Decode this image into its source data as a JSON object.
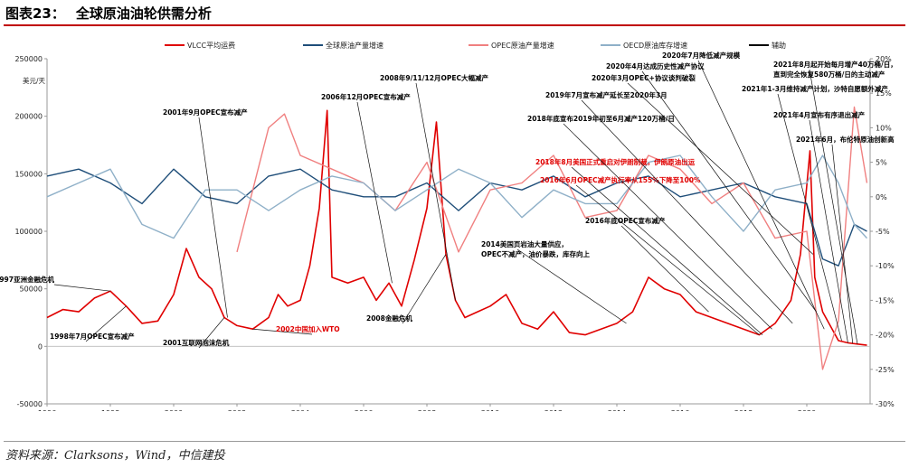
{
  "header": {
    "figure_number": "图表23：",
    "title": "全球原油油轮供需分析"
  },
  "source": "资料来源：Clarksons，Wind，中信建投",
  "chart_data": {
    "type": "line",
    "title": "全球原油油轮供需分析",
    "ylabel_left": "美元/天",
    "ylabel_right": "",
    "xlim": [
      1996,
      2022
    ],
    "ylim_left": [
      -50000,
      250000
    ],
    "ylim_right": [
      -30,
      20
    ],
    "x_ticks": [
      "1996",
      "1998",
      "2000",
      "2002",
      "2004",
      "2006",
      "2008",
      "2010",
      "2012",
      "2014",
      "2016",
      "2018",
      "2020"
    ],
    "y_left_ticks": [
      "-50000",
      "0",
      "50000",
      "100000",
      "150000",
      "200000",
      "250000"
    ],
    "y_right_ticks": [
      "-30%",
      "-25%",
      "-20%",
      "-15%",
      "-10%",
      "-5%",
      "0%",
      "5%",
      "10%",
      "15%",
      "20%"
    ],
    "legend_position": "top",
    "grid": false,
    "series": [
      {
        "name": "VLCC平均运费",
        "axis": "left",
        "color": "#e00000",
        "x": [
          1996.0,
          1996.5,
          1997.0,
          1997.5,
          1998.0,
          1998.5,
          1999.0,
          1999.5,
          2000.0,
          2000.4,
          2000.8,
          2001.2,
          2001.6,
          2002.0,
          2002.5,
          2003.0,
          2003.3,
          2003.6,
          2004.0,
          2004.3,
          2004.6,
          2004.85,
          2005.0,
          2005.5,
          2006.0,
          2006.4,
          2006.8,
          2007.2,
          2007.6,
          2008.0,
          2008.3,
          2008.6,
          2008.9,
          2009.2,
          2009.6,
          2010.0,
          2010.5,
          2011.0,
          2011.5,
          2012.0,
          2012.5,
          2013.0,
          2013.5,
          2014.0,
          2014.5,
          2015.0,
          2015.5,
          2016.0,
          2016.5,
          2017.0,
          2017.5,
          2018.0,
          2018.5,
          2019.0,
          2019.5,
          2019.8,
          2020.1,
          2020.25,
          2020.5,
          2020.8,
          2021.0,
          2021.3,
          2021.6,
          2021.9
        ],
        "y": [
          25000,
          32000,
          30000,
          42000,
          48000,
          35000,
          20000,
          22000,
          45000,
          85000,
          60000,
          50000,
          25000,
          18000,
          15000,
          25000,
          45000,
          35000,
          40000,
          70000,
          120000,
          205000,
          60000,
          55000,
          60000,
          40000,
          55000,
          35000,
          75000,
          120000,
          195000,
          80000,
          40000,
          25000,
          30000,
          35000,
          45000,
          20000,
          15000,
          30000,
          12000,
          10000,
          15000,
          20000,
          30000,
          60000,
          50000,
          45000,
          30000,
          25000,
          20000,
          15000,
          10000,
          20000,
          40000,
          80000,
          170000,
          60000,
          30000,
          15000,
          5000,
          3000,
          2000,
          1000
        ]
      },
      {
        "name": "全球原油产量增速",
        "axis": "right",
        "color": "#1f4e79",
        "x": [
          1996.0,
          1997.0,
          1998.0,
          1999.0,
          2000.0,
          2001.0,
          2002.0,
          2003.0,
          2004.0,
          2005.0,
          2006.0,
          2007.0,
          2008.0,
          2009.0,
          2010.0,
          2011.0,
          2012.0,
          2013.0,
          2014.0,
          2015.0,
          2016.0,
          2017.0,
          2018.0,
          2019.0,
          2020.0,
          2020.5,
          2021.0,
          2021.5,
          2021.9
        ],
        "y": [
          3,
          4,
          2,
          -1,
          4,
          0,
          -1,
          3,
          4,
          1,
          0,
          0,
          2,
          -2,
          2,
          1,
          3,
          0,
          2,
          3,
          0,
          1,
          2,
          0,
          -1,
          -9,
          -10,
          -4,
          -5
        ]
      },
      {
        "name": "OPEC原油产量增速",
        "axis": "right",
        "color": "#f08080",
        "x": [
          2002.0,
          2003.0,
          2003.5,
          2004.0,
          2005.0,
          2006.0,
          2007.0,
          2008.0,
          2009.0,
          2010.0,
          2011.0,
          2012.0,
          2013.0,
          2014.0,
          2015.0,
          2016.0,
          2017.0,
          2018.0,
          2019.0,
          2020.0,
          2020.5,
          2021.0,
          2021.5,
          2021.9
        ],
        "y": [
          -8,
          10,
          12,
          6,
          4,
          2,
          -2,
          5,
          -8,
          1,
          2,
          6,
          -3,
          -2,
          6,
          4,
          -1,
          2,
          -6,
          -5,
          -25,
          -18,
          13,
          2
        ]
      },
      {
        "name": "OECD原油库存增速",
        "axis": "right",
        "color": "#8fb0c8",
        "x": [
          1996.0,
          1997.0,
          1998.0,
          1999.0,
          2000.0,
          2001.0,
          2002.0,
          2003.0,
          2004.0,
          2005.0,
          2006.0,
          2007.0,
          2008.0,
          2009.0,
          2010.0,
          2011.0,
          2012.0,
          2013.0,
          2014.0,
          2015.0,
          2016.0,
          2017.0,
          2018.0,
          2019.0,
          2020.0,
          2020.5,
          2021.0,
          2021.5,
          2021.9
        ],
        "y": [
          0,
          2,
          4,
          -4,
          -6,
          1,
          1,
          -2,
          1,
          3,
          2,
          -2,
          1,
          4,
          2,
          -3,
          1,
          -1,
          -1,
          5,
          6,
          0,
          -5,
          1,
          2,
          6,
          2,
          -4,
          -6
        ]
      },
      {
        "name": "辅助",
        "axis": "left",
        "color": "#000000",
        "x": [],
        "y": []
      }
    ],
    "annotations": [
      {
        "text": "1997亚洲金融危机",
        "x": 1998.0,
        "y": 48000,
        "color": "#000000"
      },
      {
        "text": "1998年7月OPEC宣布减产",
        "x": 1998.5,
        "y": 35000,
        "color": "#000000"
      },
      {
        "text": "2001年9月OPEC宣布减产",
        "x": 2001.7,
        "y": 25000,
        "color": "#000000"
      },
      {
        "text": "2001互联网泡沫危机",
        "x": 2001.6,
        "y": 25000,
        "color": "#000000"
      },
      {
        "text": "2002中国加入WTO",
        "x": 2002.5,
        "y": 15000,
        "color": "#e00000"
      },
      {
        "text": "2006年12月OPEC宣布减产",
        "x": 2006.9,
        "y": 55000,
        "color": "#000000"
      },
      {
        "text": "2008年9/11/12月OPEC大幅减产",
        "x": 2008.9,
        "y": 40000,
        "color": "#000000"
      },
      {
        "text": "2008金融危机",
        "x": 2008.6,
        "y": 80000,
        "color": "#000000"
      },
      {
        "text": "2018年8月美国正式重启对伊朗制裁，伊朗原油出运",
        "x": 2018.6,
        "y": 10000,
        "color": "#e00000"
      },
      {
        "text": "2016年6月OPEC减产执行率从155%下降至100%",
        "x": 2018.5,
        "y": 10000,
        "color": "#e00000"
      },
      {
        "text": "2014美国页岩油大量供应，OPEC不减产，油价暴跌，库存向上",
        "x": 2014.3,
        "y": 20000,
        "color": "#000000"
      },
      {
        "text": "2016年底OPEC宣布减产",
        "x": 2016.9,
        "y": 30000,
        "color": "#000000"
      },
      {
        "text": "2018年底宣布2019年初至6月减产120万桶/日",
        "x": 2018.9,
        "y": 15000,
        "color": "#000000"
      },
      {
        "text": "2019年7月宣布减产延长至2020年3月",
        "x": 2019.55,
        "y": 20000,
        "color": "#000000"
      },
      {
        "text": "2020年3月OPEC+协议谈判破裂",
        "x": 2020.2,
        "y": 80000,
        "color": "#000000"
      },
      {
        "text": "2020年4月达成历史性减产协议",
        "x": 2020.3,
        "y": 30000,
        "color": "#000000"
      },
      {
        "text": "2020年7月降低减产规模",
        "x": 2020.55,
        "y": 15000,
        "color": "#000000"
      },
      {
        "text": "2021年1-3月维持减产计划，沙特自愿额外减产",
        "x": 2021.1,
        "y": 5000,
        "color": "#000000"
      },
      {
        "text": "2021年4月宣布有序退出减产",
        "x": 2021.3,
        "y": 3000,
        "color": "#000000"
      },
      {
        "text": "2021年8月起开始每月增产40万桶/日，直到完全恢复580万桶/日的主动减产",
        "x": 2021.6,
        "y": 2000,
        "color": "#000000"
      },
      {
        "text": "2021年6月，布伦特原油创新高",
        "x": 2021.45,
        "y": 2500,
        "color": "#000000"
      }
    ]
  }
}
